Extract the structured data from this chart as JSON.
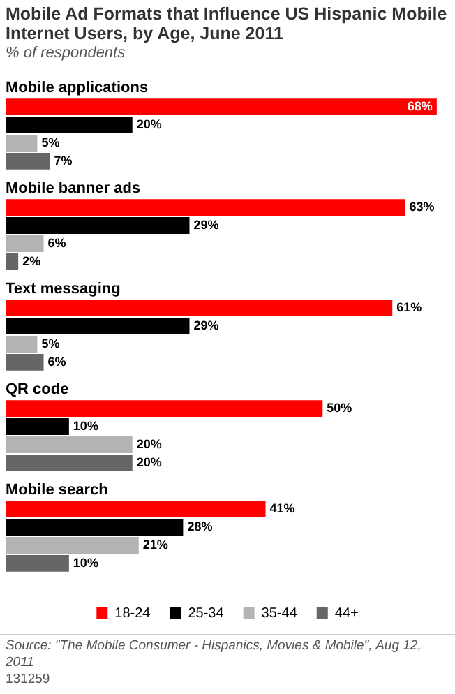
{
  "chart_data": {
    "type": "bar",
    "orientation": "horizontal",
    "title": "Mobile Ad Formats that Influence US Hispanic Mobile Internet Users, by Age, June 2011",
    "subtitle": "% of respondents",
    "categories": [
      "Mobile applications",
      "Mobile banner ads",
      "Text messaging",
      "QR code",
      "Mobile search"
    ],
    "series": [
      {
        "name": "18-24",
        "color": "#ff0000",
        "values": [
          68,
          63,
          61,
          50,
          41
        ],
        "value_labels": [
          "68%",
          "63%",
          "61%",
          "50%",
          "41%"
        ]
      },
      {
        "name": "25-34",
        "color": "#000000",
        "values": [
          20,
          29,
          29,
          10,
          28
        ],
        "value_labels": [
          "20%",
          "29%",
          "29%",
          "10%",
          "28%"
        ]
      },
      {
        "name": "35-44",
        "color": "#b3b3b3",
        "values": [
          5,
          6,
          5,
          20,
          21
        ],
        "value_labels": [
          "5%",
          "6%",
          "5%",
          "20%",
          "21%"
        ]
      },
      {
        "name": "44+",
        "color": "#666666",
        "values": [
          7,
          2,
          6,
          20,
          10
        ],
        "value_labels": [
          "7%",
          "2%",
          "6%",
          "20%",
          "10%"
        ]
      }
    ],
    "legend": "bottom",
    "annotations": [
      "Source: \"The Mobile Consumer - Hispanics, Movies & Mobile\", Aug 12, 2011",
      "131259"
    ]
  }
}
